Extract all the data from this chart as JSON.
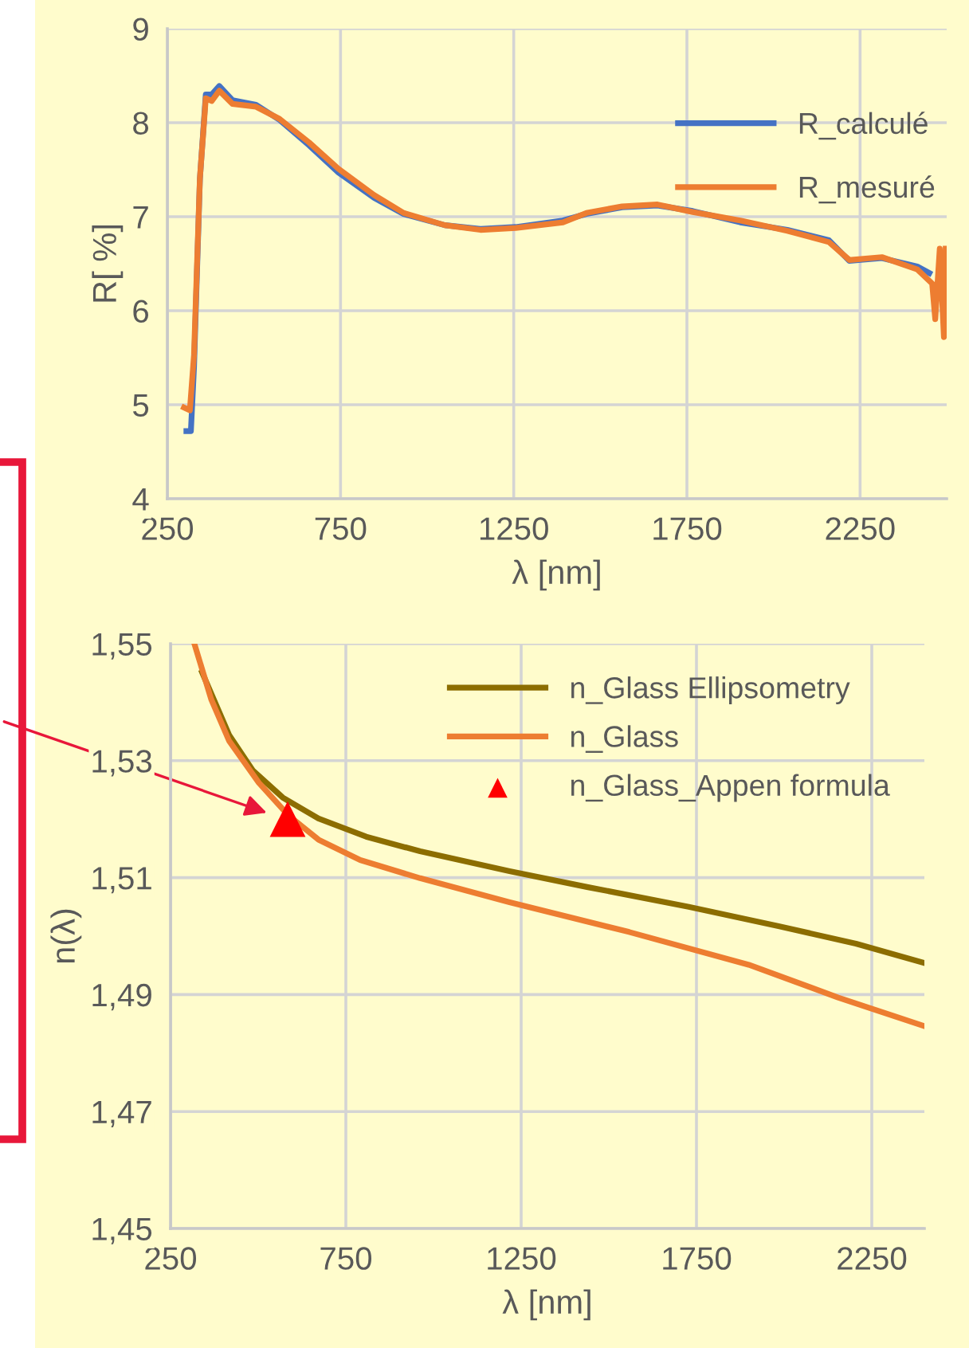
{
  "chart_data": [
    {
      "type": "line",
      "xlabel": "λ [nm]",
      "ylabel": "R[ %]",
      "xlim": [
        250,
        2500
      ],
      "xticks": [
        250,
        750,
        1250,
        1750,
        2250
      ],
      "ylim": [
        4,
        9
      ],
      "yticks": [
        4,
        5,
        6,
        7,
        8,
        9
      ],
      "grid": true,
      "legend": "top right",
      "series": [
        {
          "name": "R_calculé",
          "color": "#4472c4",
          "x": [
            305,
            318,
            327,
            344,
            361,
            378,
            400,
            438,
            506,
            574,
            659,
            744,
            847,
            932,
            1051,
            1154,
            1256,
            1392,
            1460,
            1563,
            1665,
            1767,
            1904,
            2040,
            2160,
            2219,
            2313,
            2415,
            2450
          ],
          "values": [
            4.72,
            4.72,
            5.4,
            7.4,
            8.3,
            8.3,
            8.39,
            8.24,
            8.19,
            8.03,
            7.76,
            7.47,
            7.2,
            7.03,
            6.91,
            6.87,
            6.89,
            6.96,
            7.03,
            7.1,
            7.12,
            7.06,
            6.94,
            6.86,
            6.75,
            6.53,
            6.56,
            6.47,
            6.4
          ]
        },
        {
          "name": "R_mesuré",
          "color": "#ed7d31",
          "x": [
            298,
            315,
            327,
            344,
            361,
            378,
            400,
            438,
            506,
            574,
            659,
            744,
            847,
            932,
            1051,
            1154,
            1256,
            1392,
            1460,
            1563,
            1665,
            1767,
            1904,
            2040,
            2160,
            2219,
            2313,
            2415,
            2458,
            2467,
            2480,
            2492,
            2497
          ],
          "values": [
            4.97,
            4.94,
            5.53,
            7.41,
            8.26,
            8.23,
            8.34,
            8.2,
            8.17,
            8.04,
            7.79,
            7.51,
            7.23,
            7.04,
            6.91,
            6.86,
            6.88,
            6.94,
            7.04,
            7.11,
            7.13,
            7.05,
            6.96,
            6.85,
            6.73,
            6.54,
            6.57,
            6.44,
            6.29,
            5.91,
            6.66,
            5.72,
            6.66
          ]
        }
      ]
    },
    {
      "type": "line",
      "xlabel": "λ [nm]",
      "ylabel": "n(λ)",
      "xlim": [
        250,
        2400
      ],
      "xticks": [
        250,
        750,
        1250,
        1750,
        2250
      ],
      "ylim": [
        1.45,
        1.55
      ],
      "yticks": [
        {
          "value": 1.45,
          "label": "1,45"
        },
        {
          "value": 1.47,
          "label": "1,47"
        },
        {
          "value": 1.49,
          "label": "1,49"
        },
        {
          "value": 1.51,
          "label": "1,51"
        },
        {
          "value": 1.53,
          "label": "1,53"
        },
        {
          "value": 1.55,
          "label": "1,55"
        }
      ],
      "grid": true,
      "legend": "top right",
      "series": [
        {
          "name": "n_Glass Ellipsometry",
          "color": "#8c6d00",
          "x": [
            340,
            417,
            485,
            570,
            672,
            808,
            962,
            1217,
            1438,
            1728,
            1984,
            2205,
            2400
          ],
          "values": [
            1.5451,
            1.5344,
            1.5283,
            1.5237,
            1.5201,
            1.517,
            1.5145,
            1.5111,
            1.5084,
            1.505,
            1.5017,
            1.4987,
            1.4954
          ]
        },
        {
          "name": "n_Glass",
          "color": "#ed7d31",
          "x": [
            318,
            366,
            417,
            502,
            587,
            672,
            791,
            962,
            1217,
            1558,
            1899,
            2154,
            2400
          ],
          "values": [
            1.55,
            1.5405,
            1.5334,
            1.5262,
            1.5206,
            1.5165,
            1.513,
            1.5099,
            1.5058,
            1.5007,
            1.4951,
            1.4895,
            1.4846
          ]
        },
        {
          "name": "n_Glass_Appen formula",
          "type": "scatter",
          "marker": "triangle",
          "color": "#ff0000",
          "x": [
            584
          ],
          "values": [
            1.52
          ]
        }
      ]
    }
  ]
}
